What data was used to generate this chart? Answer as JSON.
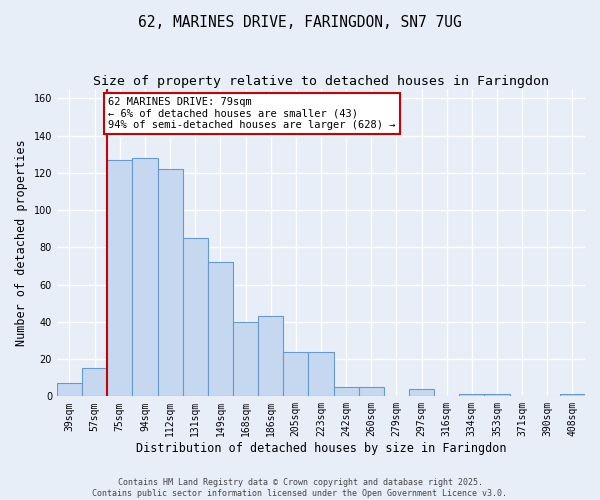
{
  "title": "62, MARINES DRIVE, FARINGDON, SN7 7UG",
  "subtitle": "Size of property relative to detached houses in Faringdon",
  "xlabel": "Distribution of detached houses by size in Faringdon",
  "ylabel": "Number of detached properties",
  "categories": [
    "39sqm",
    "57sqm",
    "75sqm",
    "94sqm",
    "112sqm",
    "131sqm",
    "149sqm",
    "168sqm",
    "186sqm",
    "205sqm",
    "223sqm",
    "242sqm",
    "260sqm",
    "279sqm",
    "297sqm",
    "316sqm",
    "334sqm",
    "353sqm",
    "371sqm",
    "390sqm",
    "408sqm"
  ],
  "values": [
    7,
    15,
    127,
    128,
    122,
    85,
    72,
    40,
    43,
    24,
    24,
    5,
    5,
    0,
    4,
    0,
    1,
    1,
    0,
    0,
    1
  ],
  "bar_color": "#c5d8f0",
  "bar_edge_color": "#6699cc",
  "red_line_index": 2,
  "annotation_text": "62 MARINES DRIVE: 79sqm\n← 6% of detached houses are smaller (43)\n94% of semi-detached houses are larger (628) →",
  "annotation_box_color": "#ffffff",
  "annotation_box_edge": "#cc0000",
  "red_line_color": "#cc0000",
  "ylim": [
    0,
    165
  ],
  "footer1": "Contains HM Land Registry data © Crown copyright and database right 2025.",
  "footer2": "Contains public sector information licensed under the Open Government Licence v3.0.",
  "background_color": "#e8eef8",
  "plot_bg_color": "#e8eef8",
  "grid_color": "#ffffff",
  "title_fontsize": 10.5,
  "subtitle_fontsize": 9.5,
  "tick_fontsize": 7,
  "ylabel_fontsize": 8.5,
  "xlabel_fontsize": 8.5,
  "footer_fontsize": 6,
  "annot_fontsize": 7.5
}
